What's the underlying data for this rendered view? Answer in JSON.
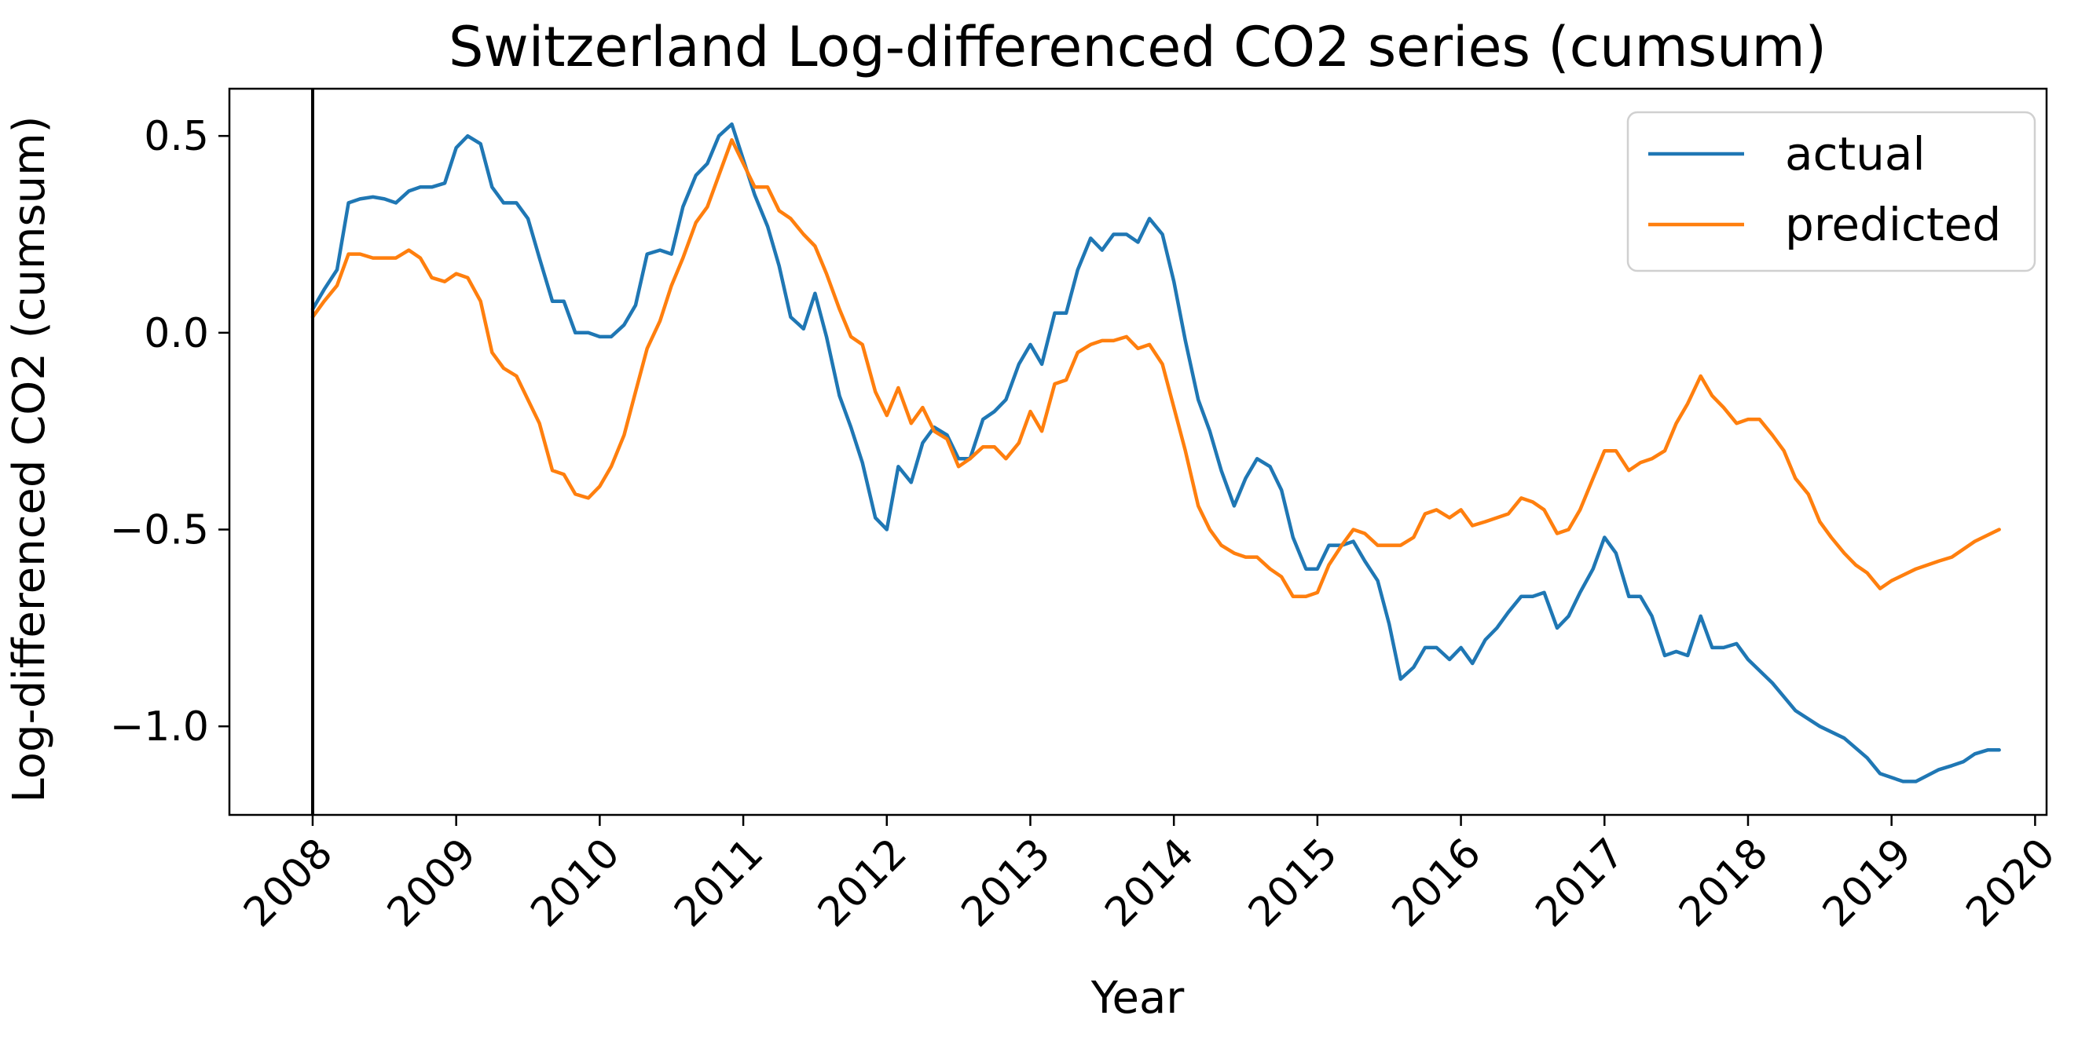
{
  "chart_data": {
    "type": "line",
    "title": "Switzerland Log-differenced CO2 series (cumsum)",
    "xlabel": "Year",
    "ylabel": "Log-differenced CO2 (cumsum)",
    "xlim": [
      2007.42,
      2020.08
    ],
    "ylim": [
      -1.225,
      0.62
    ],
    "x_ticks": [
      2008,
      2009,
      2010,
      2011,
      2012,
      2013,
      2014,
      2015,
      2016,
      2017,
      2018,
      2019,
      2020
    ],
    "x_tick_labels": [
      "2008",
      "2009",
      "2010",
      "2011",
      "2012",
      "2013",
      "2014",
      "2015",
      "2016",
      "2017",
      "2018",
      "2019",
      "2020"
    ],
    "y_ticks": [
      0.5,
      0.0,
      -0.5,
      -1.0
    ],
    "y_tick_labels": [
      "0.5",
      "0.0",
      "−0.5",
      "−1.0"
    ],
    "vline_x": 2008,
    "grid": false,
    "legend_position": "top-right",
    "series": [
      {
        "name": "actual",
        "color": "#1f77b4",
        "points": [
          [
            2008.0,
            0.06
          ],
          [
            2008.08,
            0.11
          ],
          [
            2008.17,
            0.16
          ],
          [
            2008.25,
            0.33
          ],
          [
            2008.33,
            0.34
          ],
          [
            2008.42,
            0.345
          ],
          [
            2008.5,
            0.34
          ],
          [
            2008.58,
            0.33
          ],
          [
            2008.67,
            0.36
          ],
          [
            2008.75,
            0.37
          ],
          [
            2008.83,
            0.37
          ],
          [
            2008.92,
            0.38
          ],
          [
            2009.0,
            0.47
          ],
          [
            2009.08,
            0.5
          ],
          [
            2009.17,
            0.48
          ],
          [
            2009.25,
            0.37
          ],
          [
            2009.33,
            0.33
          ],
          [
            2009.42,
            0.33
          ],
          [
            2009.5,
            0.29
          ],
          [
            2009.58,
            0.19
          ],
          [
            2009.67,
            0.08
          ],
          [
            2009.75,
            0.08
          ],
          [
            2009.83,
            0.0
          ],
          [
            2009.92,
            0.0
          ],
          [
            2010.0,
            -0.01
          ],
          [
            2010.08,
            -0.01
          ],
          [
            2010.17,
            0.02
          ],
          [
            2010.25,
            0.07
          ],
          [
            2010.33,
            0.2
          ],
          [
            2010.42,
            0.21
          ],
          [
            2010.5,
            0.2
          ],
          [
            2010.58,
            0.32
          ],
          [
            2010.67,
            0.4
          ],
          [
            2010.75,
            0.43
          ],
          [
            2010.83,
            0.5
          ],
          [
            2010.92,
            0.53
          ],
          [
            2011.0,
            0.44
          ],
          [
            2011.08,
            0.35
          ],
          [
            2011.17,
            0.27
          ],
          [
            2011.25,
            0.17
          ],
          [
            2011.33,
            0.04
          ],
          [
            2011.42,
            0.01
          ],
          [
            2011.5,
            0.1
          ],
          [
            2011.58,
            -0.01
          ],
          [
            2011.67,
            -0.16
          ],
          [
            2011.75,
            -0.24
          ],
          [
            2011.83,
            -0.33
          ],
          [
            2011.92,
            -0.47
          ],
          [
            2012.0,
            -0.5
          ],
          [
            2012.08,
            -0.34
          ],
          [
            2012.17,
            -0.38
          ],
          [
            2012.25,
            -0.28
          ],
          [
            2012.33,
            -0.24
          ],
          [
            2012.42,
            -0.26
          ],
          [
            2012.5,
            -0.32
          ],
          [
            2012.58,
            -0.32
          ],
          [
            2012.67,
            -0.22
          ],
          [
            2012.75,
            -0.2
          ],
          [
            2012.83,
            -0.17
          ],
          [
            2012.92,
            -0.08
          ],
          [
            2013.0,
            -0.03
          ],
          [
            2013.08,
            -0.08
          ],
          [
            2013.17,
            0.05
          ],
          [
            2013.25,
            0.05
          ],
          [
            2013.33,
            0.16
          ],
          [
            2013.42,
            0.24
          ],
          [
            2013.5,
            0.21
          ],
          [
            2013.58,
            0.25
          ],
          [
            2013.67,
            0.25
          ],
          [
            2013.75,
            0.23
          ],
          [
            2013.83,
            0.29
          ],
          [
            2013.92,
            0.25
          ],
          [
            2014.0,
            0.13
          ],
          [
            2014.08,
            -0.02
          ],
          [
            2014.17,
            -0.17
          ],
          [
            2014.25,
            -0.25
          ],
          [
            2014.33,
            -0.35
          ],
          [
            2014.42,
            -0.44
          ],
          [
            2014.5,
            -0.37
          ],
          [
            2014.58,
            -0.32
          ],
          [
            2014.67,
            -0.34
          ],
          [
            2014.75,
            -0.4
          ],
          [
            2014.83,
            -0.52
          ],
          [
            2014.92,
            -0.6
          ],
          [
            2015.0,
            -0.6
          ],
          [
            2015.08,
            -0.54
          ],
          [
            2015.17,
            -0.54
          ],
          [
            2015.25,
            -0.53
          ],
          [
            2015.33,
            -0.58
          ],
          [
            2015.42,
            -0.63
          ],
          [
            2015.5,
            -0.74
          ],
          [
            2015.58,
            -0.88
          ],
          [
            2015.67,
            -0.85
          ],
          [
            2015.75,
            -0.8
          ],
          [
            2015.83,
            -0.8
          ],
          [
            2015.92,
            -0.83
          ],
          [
            2016.0,
            -0.8
          ],
          [
            2016.08,
            -0.84
          ],
          [
            2016.17,
            -0.78
          ],
          [
            2016.25,
            -0.75
          ],
          [
            2016.33,
            -0.71
          ],
          [
            2016.42,
            -0.67
          ],
          [
            2016.5,
            -0.67
          ],
          [
            2016.58,
            -0.66
          ],
          [
            2016.67,
            -0.75
          ],
          [
            2016.75,
            -0.72
          ],
          [
            2016.83,
            -0.66
          ],
          [
            2016.92,
            -0.6
          ],
          [
            2017.0,
            -0.52
          ],
          [
            2017.08,
            -0.56
          ],
          [
            2017.17,
            -0.67
          ],
          [
            2017.25,
            -0.67
          ],
          [
            2017.33,
            -0.72
          ],
          [
            2017.42,
            -0.82
          ],
          [
            2017.5,
            -0.81
          ],
          [
            2017.58,
            -0.82
          ],
          [
            2017.67,
            -0.72
          ],
          [
            2017.75,
            -0.8
          ],
          [
            2017.83,
            -0.8
          ],
          [
            2017.92,
            -0.79
          ],
          [
            2018.0,
            -0.83
          ],
          [
            2018.17,
            -0.89
          ],
          [
            2018.33,
            -0.96
          ],
          [
            2018.5,
            -1.0
          ],
          [
            2018.67,
            -1.03
          ],
          [
            2018.83,
            -1.08
          ],
          [
            2018.92,
            -1.12
          ],
          [
            2019.08,
            -1.14
          ],
          [
            2019.17,
            -1.14
          ],
          [
            2019.33,
            -1.11
          ],
          [
            2019.42,
            -1.1
          ],
          [
            2019.5,
            -1.09
          ],
          [
            2019.58,
            -1.07
          ],
          [
            2019.67,
            -1.06
          ],
          [
            2019.75,
            -1.06
          ]
        ]
      },
      {
        "name": "predicted",
        "color": "#ff7f0e",
        "points": [
          [
            2008.0,
            0.04
          ],
          [
            2008.08,
            0.08
          ],
          [
            2008.17,
            0.12
          ],
          [
            2008.25,
            0.2
          ],
          [
            2008.33,
            0.2
          ],
          [
            2008.42,
            0.19
          ],
          [
            2008.5,
            0.19
          ],
          [
            2008.58,
            0.19
          ],
          [
            2008.67,
            0.21
          ],
          [
            2008.75,
            0.19
          ],
          [
            2008.83,
            0.14
          ],
          [
            2008.92,
            0.13
          ],
          [
            2009.0,
            0.15
          ],
          [
            2009.08,
            0.14
          ],
          [
            2009.17,
            0.08
          ],
          [
            2009.25,
            -0.05
          ],
          [
            2009.33,
            -0.09
          ],
          [
            2009.42,
            -0.11
          ],
          [
            2009.5,
            -0.17
          ],
          [
            2009.58,
            -0.23
          ],
          [
            2009.67,
            -0.35
          ],
          [
            2009.75,
            -0.36
          ],
          [
            2009.83,
            -0.41
          ],
          [
            2009.92,
            -0.42
          ],
          [
            2010.0,
            -0.39
          ],
          [
            2010.08,
            -0.34
          ],
          [
            2010.17,
            -0.26
          ],
          [
            2010.25,
            -0.15
          ],
          [
            2010.33,
            -0.04
          ],
          [
            2010.42,
            0.03
          ],
          [
            2010.5,
            0.12
          ],
          [
            2010.58,
            0.19
          ],
          [
            2010.67,
            0.28
          ],
          [
            2010.75,
            0.32
          ],
          [
            2010.83,
            0.4
          ],
          [
            2010.92,
            0.49
          ],
          [
            2011.0,
            0.43
          ],
          [
            2011.08,
            0.37
          ],
          [
            2011.17,
            0.37
          ],
          [
            2011.25,
            0.31
          ],
          [
            2011.33,
            0.29
          ],
          [
            2011.42,
            0.25
          ],
          [
            2011.5,
            0.22
          ],
          [
            2011.58,
            0.15
          ],
          [
            2011.67,
            0.06
          ],
          [
            2011.75,
            -0.01
          ],
          [
            2011.83,
            -0.03
          ],
          [
            2011.92,
            -0.15
          ],
          [
            2012.0,
            -0.21
          ],
          [
            2012.08,
            -0.14
          ],
          [
            2012.17,
            -0.23
          ],
          [
            2012.25,
            -0.19
          ],
          [
            2012.33,
            -0.25
          ],
          [
            2012.42,
            -0.27
          ],
          [
            2012.5,
            -0.34
          ],
          [
            2012.58,
            -0.32
          ],
          [
            2012.67,
            -0.29
          ],
          [
            2012.75,
            -0.29
          ],
          [
            2012.83,
            -0.32
          ],
          [
            2012.92,
            -0.28
          ],
          [
            2013.0,
            -0.2
          ],
          [
            2013.08,
            -0.25
          ],
          [
            2013.17,
            -0.13
          ],
          [
            2013.25,
            -0.12
          ],
          [
            2013.33,
            -0.05
          ],
          [
            2013.42,
            -0.03
          ],
          [
            2013.5,
            -0.02
          ],
          [
            2013.58,
            -0.02
          ],
          [
            2013.67,
            -0.01
          ],
          [
            2013.75,
            -0.04
          ],
          [
            2013.83,
            -0.03
          ],
          [
            2013.92,
            -0.08
          ],
          [
            2014.0,
            -0.19
          ],
          [
            2014.08,
            -0.3
          ],
          [
            2014.17,
            -0.44
          ],
          [
            2014.25,
            -0.5
          ],
          [
            2014.33,
            -0.54
          ],
          [
            2014.42,
            -0.56
          ],
          [
            2014.5,
            -0.57
          ],
          [
            2014.58,
            -0.57
          ],
          [
            2014.67,
            -0.6
          ],
          [
            2014.75,
            -0.62
          ],
          [
            2014.83,
            -0.67
          ],
          [
            2014.92,
            -0.67
          ],
          [
            2015.0,
            -0.66
          ],
          [
            2015.08,
            -0.59
          ],
          [
            2015.17,
            -0.54
          ],
          [
            2015.25,
            -0.5
          ],
          [
            2015.33,
            -0.51
          ],
          [
            2015.42,
            -0.54
          ],
          [
            2015.5,
            -0.54
          ],
          [
            2015.58,
            -0.54
          ],
          [
            2015.67,
            -0.52
          ],
          [
            2015.75,
            -0.46
          ],
          [
            2015.83,
            -0.45
          ],
          [
            2015.92,
            -0.47
          ],
          [
            2016.0,
            -0.45
          ],
          [
            2016.08,
            -0.49
          ],
          [
            2016.17,
            -0.48
          ],
          [
            2016.25,
            -0.47
          ],
          [
            2016.33,
            -0.46
          ],
          [
            2016.42,
            -0.42
          ],
          [
            2016.5,
            -0.43
          ],
          [
            2016.58,
            -0.45
          ],
          [
            2016.67,
            -0.51
          ],
          [
            2016.75,
            -0.5
          ],
          [
            2016.83,
            -0.45
          ],
          [
            2016.92,
            -0.37
          ],
          [
            2017.0,
            -0.3
          ],
          [
            2017.08,
            -0.3
          ],
          [
            2017.17,
            -0.35
          ],
          [
            2017.25,
            -0.33
          ],
          [
            2017.33,
            -0.32
          ],
          [
            2017.42,
            -0.3
          ],
          [
            2017.5,
            -0.23
          ],
          [
            2017.58,
            -0.18
          ],
          [
            2017.67,
            -0.11
          ],
          [
            2017.75,
            -0.16
          ],
          [
            2017.83,
            -0.19
          ],
          [
            2017.92,
            -0.23
          ],
          [
            2018.0,
            -0.22
          ],
          [
            2018.08,
            -0.22
          ],
          [
            2018.17,
            -0.26
          ],
          [
            2018.25,
            -0.3
          ],
          [
            2018.33,
            -0.37
          ],
          [
            2018.42,
            -0.41
          ],
          [
            2018.5,
            -0.48
          ],
          [
            2018.58,
            -0.52
          ],
          [
            2018.67,
            -0.56
          ],
          [
            2018.75,
            -0.59
          ],
          [
            2018.83,
            -0.61
          ],
          [
            2018.92,
            -0.65
          ],
          [
            2019.0,
            -0.63
          ],
          [
            2019.17,
            -0.6
          ],
          [
            2019.33,
            -0.58
          ],
          [
            2019.42,
            -0.57
          ],
          [
            2019.5,
            -0.55
          ],
          [
            2019.58,
            -0.53
          ],
          [
            2019.75,
            -0.5
          ]
        ]
      }
    ]
  }
}
